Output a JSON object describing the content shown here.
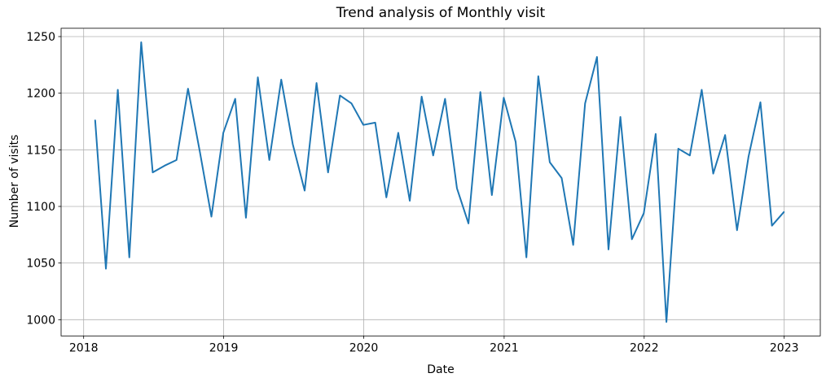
{
  "chart_data": {
    "type": "line",
    "title": "Trend analysis of Monthly visit",
    "xlabel": "Date",
    "ylabel": "Number of visits",
    "grid": true,
    "legend": "none",
    "line_color": "#1f77b4",
    "grid_color": "#b0b0b0",
    "x_tick_labels": [
      "2018",
      "2019",
      "2020",
      "2021",
      "2022",
      "2023"
    ],
    "y_ticks": [
      1000,
      1050,
      1100,
      1150,
      1200,
      1250
    ],
    "ylim": [
      985.65,
      1257.35
    ],
    "x_range_dates": [
      "2018-01-31",
      "2022-12-31"
    ],
    "series": [
      {
        "name": "Monthly visits",
        "start_month": "2018-01",
        "end_month": "2022-12",
        "frequency": "monthly (month-end)",
        "values": [
          1176,
          1045,
          1203,
          1055,
          1245,
          1130,
          1136,
          1141,
          1204,
          1148,
          1091,
          1165,
          1195,
          1090,
          1214,
          1141,
          1212,
          1155,
          1114,
          1209,
          1130,
          1198,
          1191,
          1172,
          1174,
          1108,
          1165,
          1105,
          1197,
          1145,
          1195,
          1116,
          1085,
          1201,
          1110,
          1196,
          1157,
          1055,
          1215,
          1139,
          1125,
          1066,
          1191,
          1232,
          1062,
          1179,
          1071,
          1094,
          1164,
          998,
          1151,
          1145,
          1203,
          1129,
          1163,
          1079,
          1144,
          1192,
          1083,
          1095
        ]
      }
    ]
  }
}
